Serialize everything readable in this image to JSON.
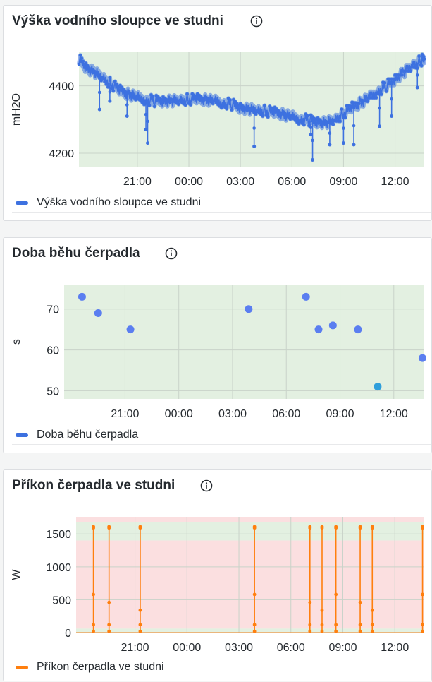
{
  "colors": {
    "blue": "#3d71e0",
    "blue_scatter": "#5b7ef0",
    "teal": "#2f9fdb",
    "orange": "#ff7f0e",
    "green_band": "#e3f0e1",
    "red_band": "#fbdfe0",
    "icon": "info-circle-icon"
  },
  "panels": [
    {
      "title": "Výška vodního sloupce ve studni",
      "legend": "Výška vodního sloupce ve studni"
    },
    {
      "title": "Doba běhu čerpadla",
      "legend": "Doba běhu čerpadla"
    },
    {
      "title": "Příkon čerpadla ve studni",
      "legend": "Příkon čerpadla ve studni"
    }
  ],
  "chart_data": [
    {
      "type": "line",
      "title": "Výška vodního sloupce ve studni",
      "ylabel": "mH2O",
      "xlabel": "",
      "x_ticks": [
        "21:00",
        "00:00",
        "03:00",
        "06:00",
        "09:00",
        "12:00"
      ],
      "y_ticks": [
        4200,
        4400
      ],
      "ylim": [
        4160,
        4500
      ],
      "xlim_hours": [
        17.6,
        37.7
      ],
      "grid": true,
      "legend_position": "bottom-left",
      "series": [
        {
          "name": "Výška vodního sloupce ve studni",
          "points": [
            [
              17.6,
              4480
            ],
            [
              18.0,
              4455
            ],
            [
              18.5,
              4440
            ],
            [
              19.0,
              4425
            ],
            [
              19.5,
              4405
            ],
            [
              20.0,
              4385
            ],
            [
              20.5,
              4375
            ],
            [
              21.0,
              4365
            ],
            [
              21.5,
              4360
            ],
            [
              22.0,
              4355
            ],
            [
              22.5,
              4355
            ],
            [
              23.0,
              4355
            ],
            [
              23.5,
              4358
            ],
            [
              24.0,
              4360
            ],
            [
              24.5,
              4360
            ],
            [
              25.0,
              4358
            ],
            [
              25.5,
              4355
            ],
            [
              26.0,
              4350
            ],
            [
              26.5,
              4345
            ],
            [
              27.0,
              4335
            ],
            [
              27.5,
              4330
            ],
            [
              28.0,
              4328
            ],
            [
              28.5,
              4325
            ],
            [
              29.0,
              4320
            ],
            [
              29.5,
              4315
            ],
            [
              30.0,
              4308
            ],
            [
              30.5,
              4302
            ],
            [
              31.0,
              4298
            ],
            [
              31.5,
              4292
            ],
            [
              32.0,
              4290
            ],
            [
              32.5,
              4300
            ],
            [
              33.0,
              4318
            ],
            [
              33.5,
              4335
            ],
            [
              34.0,
              4350
            ],
            [
              34.5,
              4365
            ],
            [
              35.0,
              4385
            ],
            [
              35.5,
              4400
            ],
            [
              36.0,
              4420
            ],
            [
              36.5,
              4440
            ],
            [
              37.0,
              4460
            ],
            [
              37.5,
              4475
            ],
            [
              37.7,
              4480
            ]
          ],
          "dips": [
            [
              18.8,
              4330
            ],
            [
              19.4,
              4355
            ],
            [
              20.4,
              4310
            ],
            [
              21.5,
              4270
            ],
            [
              21.6,
              4230
            ],
            [
              27.8,
              4220
            ],
            [
              31.1,
              4255
            ],
            [
              31.2,
              4180
            ],
            [
              32.2,
              4225
            ],
            [
              33.0,
              4230
            ],
            [
              33.6,
              4225
            ],
            [
              35.1,
              4280
            ],
            [
              35.8,
              4310
            ],
            [
              37.3,
              4395
            ]
          ]
        }
      ]
    },
    {
      "type": "scatter",
      "title": "Doba běhu čerpadla",
      "ylabel": "s",
      "xlabel": "",
      "x_ticks": [
        "21:00",
        "00:00",
        "03:00",
        "06:00",
        "09:00",
        "12:00"
      ],
      "y_ticks": [
        50,
        60,
        70
      ],
      "ylim": [
        48,
        76
      ],
      "xlim_hours": [
        17.6,
        37.7
      ],
      "grid": true,
      "legend_position": "bottom-left",
      "series": [
        {
          "name": "Doba běhu čerpadla",
          "points": [
            [
              18.6,
              73
            ],
            [
              19.5,
              69
            ],
            [
              21.3,
              65
            ],
            [
              27.9,
              70
            ],
            [
              31.1,
              73
            ],
            [
              31.8,
              65
            ],
            [
              32.6,
              66
            ],
            [
              34.0,
              65
            ],
            [
              35.1,
              51
            ],
            [
              37.6,
              58
            ]
          ]
        }
      ]
    },
    {
      "type": "line",
      "title": "Příkon čerpadla ve studni",
      "ylabel": "W",
      "xlabel": "",
      "x_ticks": [
        "21:00",
        "00:00",
        "03:00",
        "06:00",
        "09:00",
        "12:00"
      ],
      "y_ticks": [
        0,
        500,
        1000,
        1500
      ],
      "ylim": [
        0,
        1760
      ],
      "xlim_hours": [
        17.6,
        37.7
      ],
      "grid": true,
      "legend_position": "bottom-left",
      "series": [
        {
          "name": "Příkon čerpadla ve studni",
          "spikes_hours": [
            18.6,
            19.5,
            21.3,
            27.9,
            31.1,
            31.8,
            32.6,
            34.0,
            34.7,
            37.6
          ]
        }
      ]
    }
  ]
}
